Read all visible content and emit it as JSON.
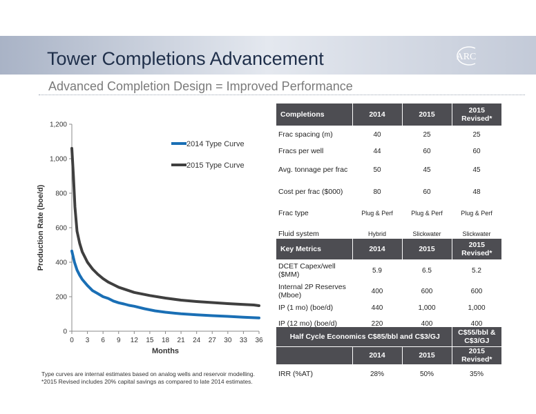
{
  "header": {
    "title": "Tower Completions Advancement",
    "subtitle": "Advanced Completion Design = Improved Performance",
    "logo_text": "ARC"
  },
  "chart_data": {
    "type": "line",
    "xlabel": "Months",
    "ylabel": "Production Rate (boe/d)",
    "xlim": [
      0,
      36
    ],
    "ylim": [
      0,
      1200
    ],
    "xticks": [
      0,
      3,
      6,
      9,
      12,
      15,
      18,
      21,
      24,
      27,
      30,
      33,
      36
    ],
    "yticks": [
      0,
      200,
      400,
      600,
      800,
      1000,
      1200
    ],
    "ytick_labels": [
      "0",
      "200",
      "400",
      "600",
      "800",
      "1,000",
      "1,200"
    ],
    "grid": false,
    "legend": "top-right",
    "series": [
      {
        "name": "2014 Type Curve",
        "color": "#1a6fb5",
        "x": [
          0,
          0.5,
          1,
          1.5,
          2,
          3,
          4,
          5,
          6,
          7,
          8,
          9,
          10,
          11,
          12,
          14,
          16,
          18,
          21,
          24,
          27,
          30,
          33,
          36
        ],
        "y": [
          465,
          400,
          355,
          325,
          300,
          265,
          235,
          218,
          200,
          190,
          175,
          165,
          158,
          150,
          145,
          130,
          118,
          110,
          101,
          95,
          90,
          86,
          81,
          77
        ]
      },
      {
        "name": "2015 Type Curve",
        "color": "#3f3f3f",
        "x": [
          0,
          0.3,
          0.6,
          1,
          1.5,
          2,
          3,
          4,
          5,
          6,
          7,
          8,
          9,
          10,
          12,
          15,
          18,
          21,
          24,
          27,
          30,
          33,
          35,
          36
        ],
        "y": [
          1060,
          900,
          720,
          580,
          510,
          460,
          400,
          360,
          330,
          305,
          285,
          270,
          255,
          245,
          225,
          207,
          192,
          180,
          172,
          166,
          160,
          155,
          152,
          148
        ]
      }
    ]
  },
  "footnotes": [
    "Type curves are internal estimates based on analog wells and reservoir modelling.",
    "*2015 Revised includes 20% capital savings as compared to late 2014 estimates."
  ],
  "completions": {
    "headers": [
      "Completions",
      "2014",
      "2015",
      "2015 Revised*"
    ],
    "rows": [
      {
        "label": "Frac spacing (m)",
        "values": [
          "40",
          "25",
          "25"
        ]
      },
      {
        "label": "Fracs per well",
        "values": [
          "44",
          "60",
          "60"
        ]
      },
      {
        "label": "Avg. tonnage per frac",
        "values": [
          "50",
          "45",
          "45"
        ]
      },
      {
        "label": "Cost per frac ($000)",
        "values": [
          "80",
          "60",
          "48"
        ]
      },
      {
        "label": "Frac type",
        "values": [
          "Plug & Perf",
          "Plug & Perf",
          "Plug & Perf"
        ]
      },
      {
        "label": "Fluid system",
        "values": [
          "Hybrid",
          "Slickwater",
          "Slickwater"
        ]
      }
    ]
  },
  "key_metrics": {
    "headers": [
      "Key Metrics",
      "2014",
      "2015",
      "2015 Revised*"
    ],
    "rows": [
      {
        "label": "DCET Capex/well ($MM)",
        "values": [
          "5.9",
          "6.5",
          "5.2"
        ]
      },
      {
        "label": "Internal 2P Reserves (Mboe)",
        "values": [
          "400",
          "600",
          "600"
        ]
      },
      {
        "label": "IP (1 mo) (boe/d)",
        "values": [
          "440",
          "1,000",
          "1,000"
        ]
      },
      {
        "label": "IP (12 mo) (boe/d)",
        "values": [
          "220",
          "400",
          "400"
        ]
      }
    ]
  },
  "economics": {
    "header_main": "Half Cycle Economics C$85/bbl and C$3/GJ",
    "header_alt": "C$55/bbl & C$3/GJ",
    "subheaders": [
      "2014",
      "2015",
      "2015 Revised*"
    ],
    "rows": [
      {
        "label": "IRR (%AT)",
        "values": [
          "28%",
          "50%",
          "35%"
        ]
      }
    ]
  }
}
